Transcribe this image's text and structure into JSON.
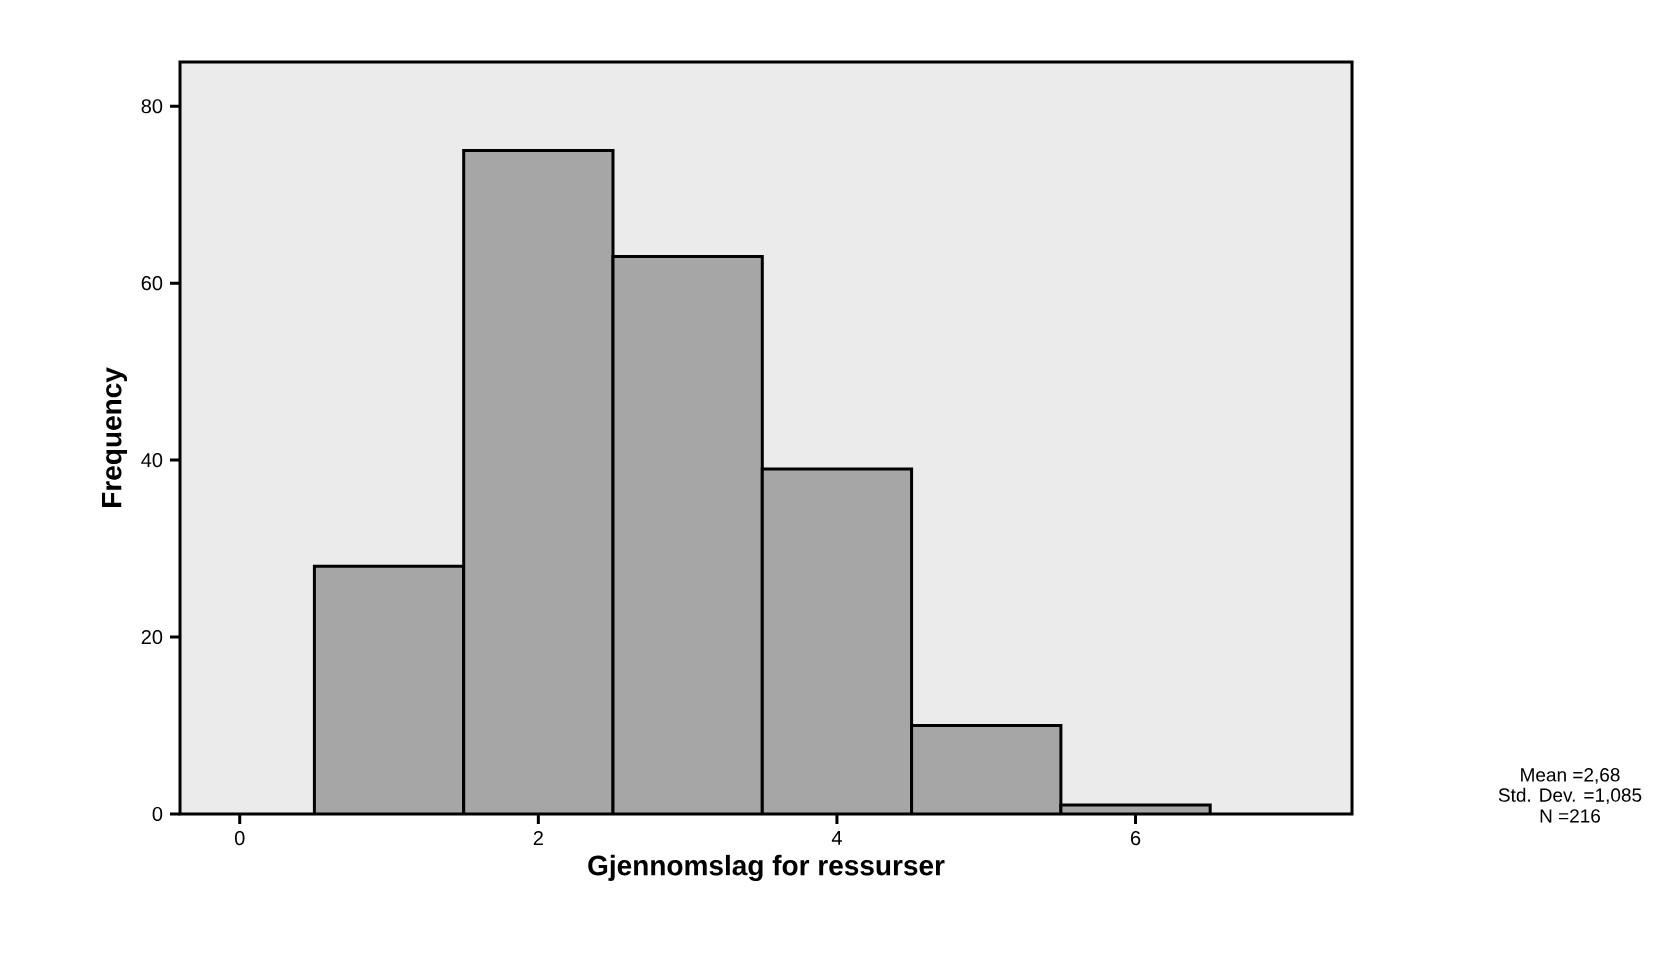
{
  "chart_data": {
    "type": "histogram",
    "xlabel": "Gjennomslag for ressurser",
    "ylabel": "Frequency",
    "bins": [
      0.5,
      1.5,
      2.5,
      3.5,
      4.5,
      5.5,
      6.5
    ],
    "values": [
      28,
      75,
      63,
      39,
      10,
      1
    ],
    "color": "#a6a6a6",
    "xlim": [
      -0.4,
      7.45
    ],
    "ylim": [
      0,
      85
    ],
    "xticks": [
      0,
      2,
      4,
      6
    ],
    "yticks": [
      0,
      20,
      40,
      60,
      80
    ],
    "grid": false,
    "annotations": [
      "Mean =2,68",
      "Std. Dev. =1,085",
      "N =216"
    ]
  }
}
